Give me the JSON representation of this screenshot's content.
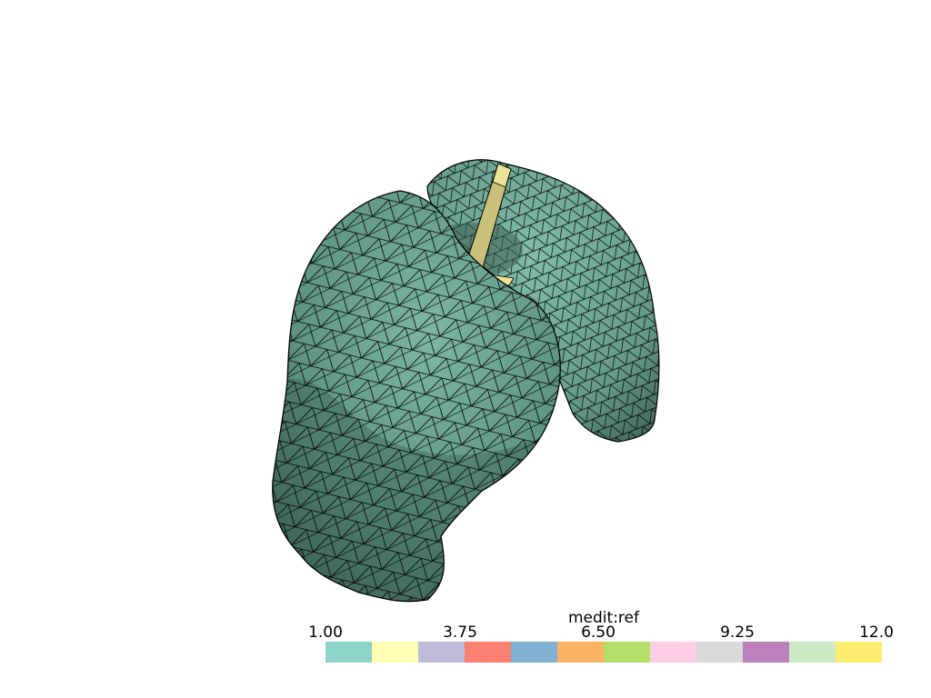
{
  "scalar_bar": {
    "title": "medit:ref",
    "ticks": [
      "1.00",
      "3.75",
      "6.50",
      "9.25",
      "12.0"
    ],
    "colors": [
      "#8dd3c7",
      "#ffffb3",
      "#bebada",
      "#fb8072",
      "#80b1d3",
      "#fdb462",
      "#b3de69",
      "#fccde5",
      "#d9d9d9",
      "#bc80bd",
      "#ccebc5",
      "#ffed6f"
    ]
  },
  "mesh": {
    "surface_color": "#6fa894",
    "shadow_color": "#3f6457",
    "edge_color": "#000000",
    "tube_color": "#e8e08a"
  }
}
